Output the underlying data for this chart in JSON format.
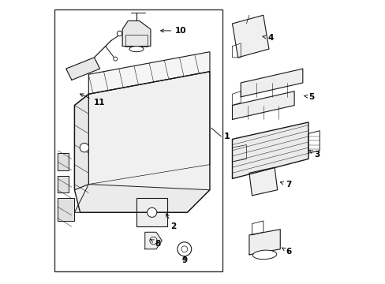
{
  "background_color": "#ffffff",
  "line_color": "#1a1a1a",
  "text_color": "#000000",
  "border_color": "#333333",
  "fig_width": 4.89,
  "fig_height": 3.6,
  "dpi": 100
}
